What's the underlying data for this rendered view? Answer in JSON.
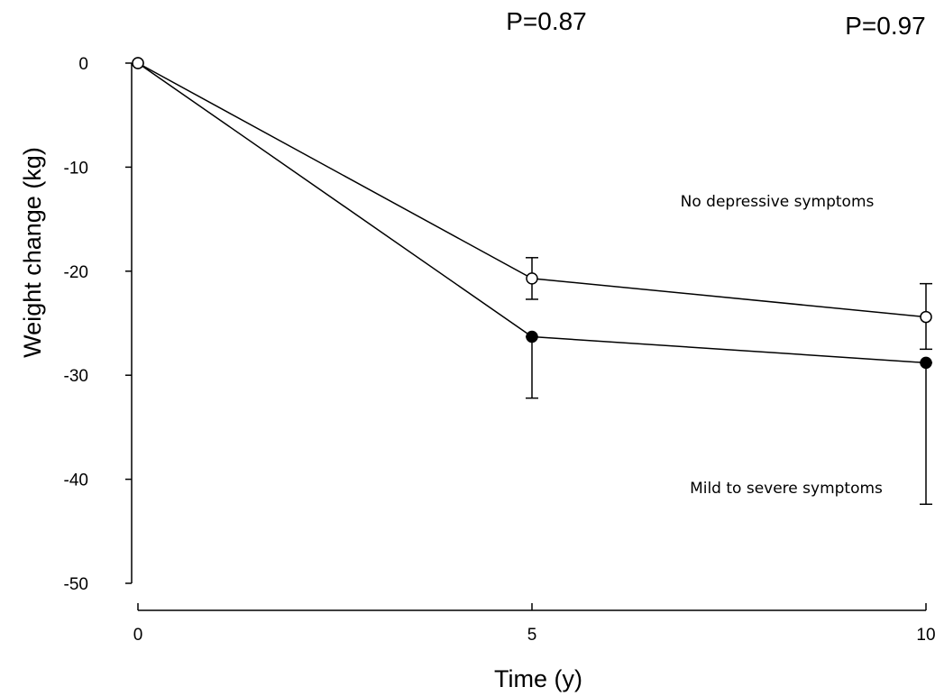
{
  "chart_data": {
    "type": "line",
    "xlabel": "Time (y)",
    "ylabel": "Weight change (kg)",
    "x": [
      0,
      5,
      10
    ],
    "xticks": [
      "0",
      "5",
      "10"
    ],
    "yticks": [
      "0",
      "-10",
      "-20",
      "-30",
      "-40",
      "-50"
    ],
    "xlim": [
      0,
      10
    ],
    "ylim": [
      -50,
      0
    ],
    "grid": false,
    "annotations": {
      "p_values": [
        {
          "x": 5,
          "text": "P=0.87"
        },
        {
          "x": 10,
          "text": "P=0.97"
        }
      ]
    },
    "series": [
      {
        "name": "No depressive symptoms",
        "marker": "open-circle",
        "values": [
          0,
          -20.7,
          -24.4
        ],
        "error_bars": [
          null,
          [
            -22.7,
            -18.7
          ],
          [
            -27.5,
            -21.2
          ]
        ]
      },
      {
        "name": "Mild to severe symptoms",
        "marker": "filled-circle",
        "values": [
          0,
          -26.3,
          -28.8
        ],
        "error_bars": [
          null,
          [
            -32.2,
            -26.3
          ],
          [
            -42.4,
            -28.8
          ]
        ]
      }
    ]
  }
}
